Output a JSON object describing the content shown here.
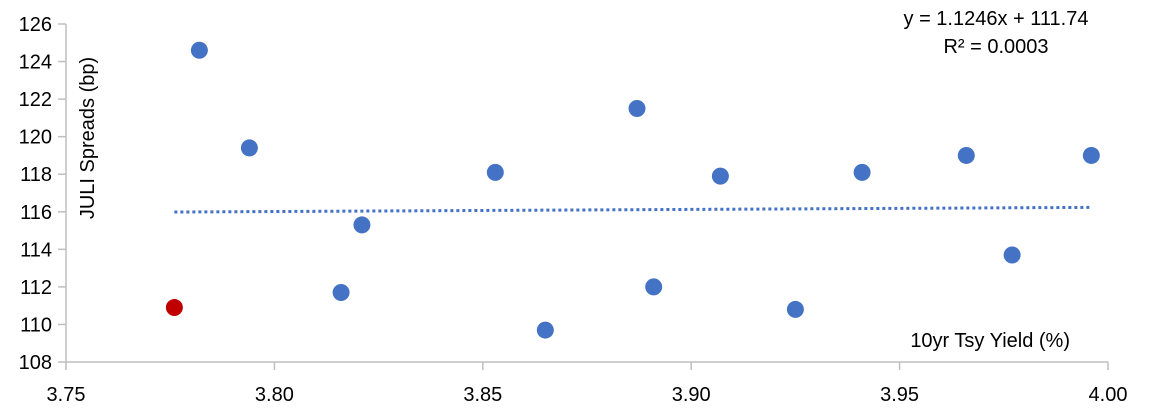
{
  "chart_data": {
    "type": "scatter",
    "xlabel": "10yr Tsy Yield (%)",
    "ylabel": "JULI Spreads (bp)",
    "xlim": [
      3.75,
      4.0
    ],
    "ylim": [
      108,
      126
    ],
    "xticks": [
      "3.75",
      "3.80",
      "3.85",
      "3.90",
      "3.95",
      "4.00"
    ],
    "yticks": [
      "108",
      "110",
      "112",
      "114",
      "116",
      "118",
      "120",
      "122",
      "124",
      "126"
    ],
    "grid": false,
    "series": [
      {
        "color": "#4472c4",
        "points": [
          [
            3.782,
            124.6
          ],
          [
            3.794,
            119.4
          ],
          [
            3.816,
            111.7
          ],
          [
            3.821,
            115.3
          ],
          [
            3.853,
            118.1
          ],
          [
            3.865,
            109.7
          ],
          [
            3.887,
            121.5
          ],
          [
            3.891,
            112.0
          ],
          [
            3.907,
            117.9
          ],
          [
            3.925,
            110.8
          ],
          [
            3.941,
            118.1
          ],
          [
            3.966,
            119.0
          ],
          [
            3.977,
            113.7
          ],
          [
            3.996,
            119.0
          ]
        ]
      },
      {
        "color": "#c00000",
        "points": [
          [
            3.776,
            110.9
          ]
        ]
      }
    ],
    "trendline": {
      "type": "linear",
      "slope": 1.1246,
      "intercept": 111.74,
      "x_range": [
        3.776,
        3.996
      ],
      "style": "dotted",
      "color": "#4472c4",
      "equation_label": "y = 1.1246x + 111.74",
      "r2_label": "R² = 0.0003"
    },
    "axis_color": "#bfbfbf"
  }
}
